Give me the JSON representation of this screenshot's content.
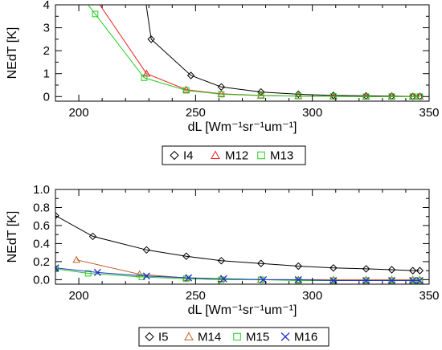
{
  "chart_data": [
    {
      "type": "line",
      "xlabel": "dL [Wm⁻¹sr⁻¹um⁻¹]",
      "ylabel": "NEdT [K]",
      "xlim": [
        190,
        350
      ],
      "ylim": [
        -0.2,
        4
      ],
      "xticks": [
        200,
        250,
        300,
        350
      ],
      "yticks": [
        0,
        1,
        2,
        3,
        4
      ],
      "legend_position": "bottom",
      "series": [
        {
          "name": "I4",
          "color": "#000000",
          "marker": "diamond",
          "x": [
            228,
            231,
            248,
            261,
            278,
            294,
            309,
            323,
            334,
            343,
            346
          ],
          "y": [
            4.6,
            2.5,
            0.92,
            0.42,
            0.2,
            0.1,
            0.05,
            0.03,
            0.02,
            0.01,
            0.01
          ]
        },
        {
          "name": "M12",
          "color": "#ee2222",
          "marker": "triangle",
          "x": [
            207,
            229,
            246,
            261,
            278,
            294,
            309,
            323,
            334,
            343,
            346
          ],
          "y": [
            4.3,
            1.0,
            0.3,
            0.12,
            0.05,
            0.02,
            0.01,
            0.0,
            0.0,
            0.0,
            0.0
          ]
        },
        {
          "name": "M13",
          "color": "#22cc22",
          "marker": "square",
          "x": [
            201,
            207,
            228,
            246,
            261,
            278,
            294,
            309,
            323,
            334,
            343,
            346
          ],
          "y": [
            4.4,
            3.6,
            0.82,
            0.27,
            0.1,
            0.04,
            0.02,
            0.01,
            0.0,
            0.0,
            0.0,
            0.0
          ]
        }
      ]
    },
    {
      "type": "line",
      "xlabel": "dL [Wm⁻¹sr⁻¹um⁻¹]",
      "ylabel": "NEdT [K]",
      "xlim": [
        190,
        350
      ],
      "ylim": [
        -0.05,
        1.0
      ],
      "xticks": [
        200,
        250,
        300,
        350
      ],
      "yticks": [
        0.0,
        0.2,
        0.4,
        0.6,
        0.8,
        1.0
      ],
      "legend_position": "bottom",
      "series": [
        {
          "name": "I5",
          "color": "#000000",
          "marker": "diamond",
          "x": [
            190,
            206,
            229,
            246,
            261,
            278,
            294,
            309,
            323,
            334,
            343,
            346
          ],
          "y": [
            0.71,
            0.48,
            0.33,
            0.26,
            0.21,
            0.18,
            0.15,
            0.13,
            0.12,
            0.11,
            0.1,
            0.1
          ]
        },
        {
          "name": "M14",
          "color": "#c0622a",
          "marker": "triangle",
          "x": [
            199,
            226,
            246,
            261,
            278,
            294,
            309,
            323,
            334,
            343,
            346
          ],
          "y": [
            0.22,
            0.06,
            0.02,
            0.01,
            0.0,
            0.0,
            0.0,
            0.0,
            0.0,
            0.0,
            0.0
          ]
        },
        {
          "name": "M15",
          "color": "#22cc22",
          "marker": "square",
          "x": [
            190,
            204,
            227,
            246,
            261,
            278,
            294,
            309,
            323,
            334,
            343,
            346
          ],
          "y": [
            0.12,
            0.07,
            0.03,
            0.01,
            0.0,
            0.0,
            -0.01,
            -0.01,
            -0.01,
            -0.01,
            -0.01,
            -0.01
          ]
        },
        {
          "name": "M16",
          "color": "#2233cc",
          "marker": "cross",
          "x": [
            190,
            208,
            229,
            247,
            262,
            279,
            294,
            309,
            323,
            334,
            343,
            346
          ],
          "y": [
            0.13,
            0.08,
            0.04,
            0.02,
            0.01,
            0.0,
            0.0,
            -0.01,
            -0.01,
            -0.01,
            -0.01,
            -0.01
          ]
        }
      ]
    }
  ]
}
